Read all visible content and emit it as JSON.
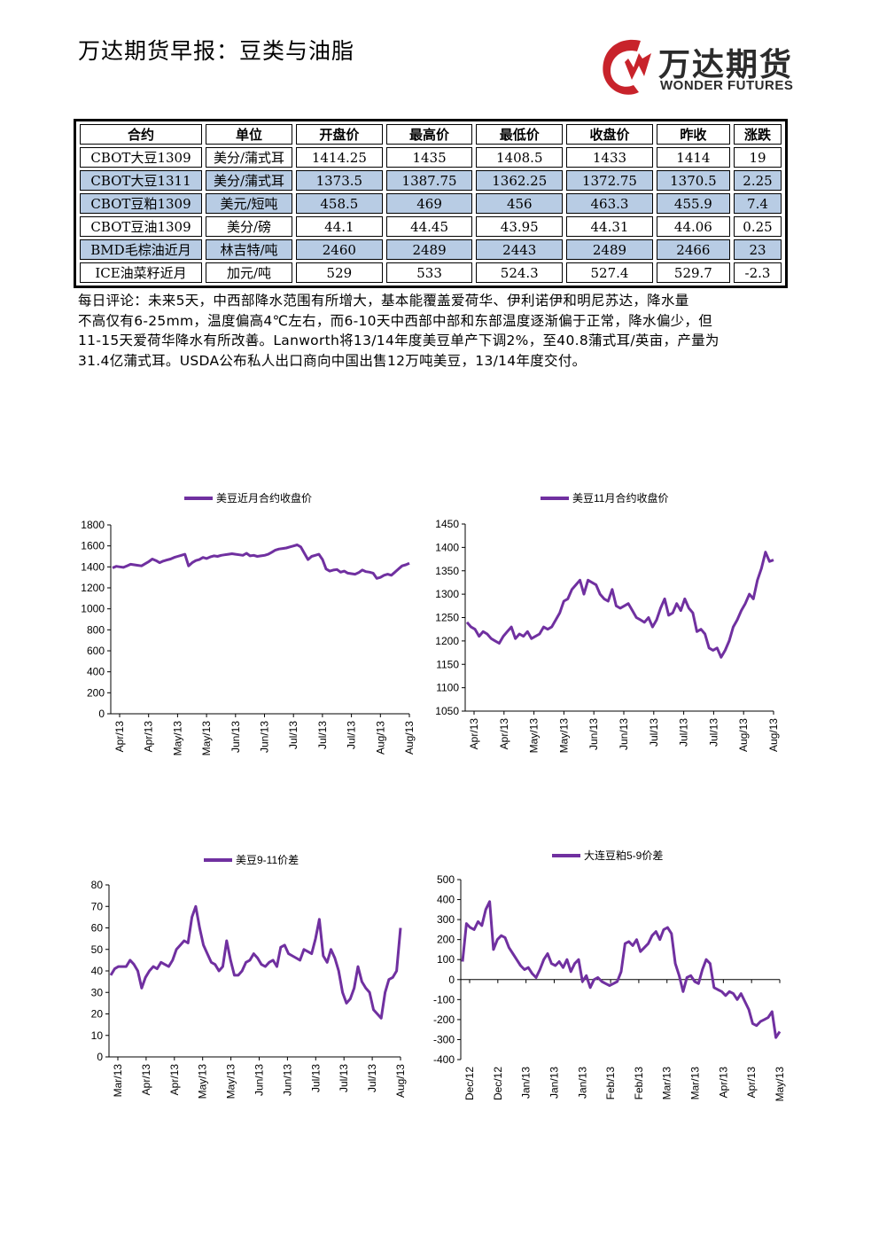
{
  "header": {
    "title": "万达期货早报：豆类与油脂"
  },
  "logo": {
    "name_cn": "万达期货",
    "name_en": "WONDER FUTURES",
    "brand_color": "#c8232b"
  },
  "quote_table": {
    "columns": [
      "合约",
      "单位",
      "开盘价",
      "最高价",
      "最低价",
      "收盘价",
      "昨收",
      "涨跌"
    ],
    "rows": [
      {
        "cells": [
          "CBOT大豆1309",
          "美分/蒲式耳",
          "1414.25",
          "1435",
          "1408.5",
          "1433",
          "1414",
          "19"
        ],
        "highlight": false
      },
      {
        "cells": [
          "CBOT大豆1311",
          "美分/蒲式耳",
          "1373.5",
          "1387.75",
          "1362.25",
          "1372.75",
          "1370.5",
          "2.25"
        ],
        "highlight": true
      },
      {
        "cells": [
          "CBOT豆粕1309",
          "美元/短吨",
          "458.5",
          "469",
          "456",
          "463.3",
          "455.9",
          "7.4"
        ],
        "highlight": true
      },
      {
        "cells": [
          "CBOT豆油1309",
          "美分/磅",
          "44.1",
          "44.45",
          "43.95",
          "44.31",
          "44.06",
          "0.25"
        ],
        "highlight": false
      },
      {
        "cells": [
          "BMD毛棕油近月",
          "林吉特/吨",
          "2460",
          "2489",
          "2443",
          "2489",
          "2466",
          "23"
        ],
        "highlight": true
      },
      {
        "cells": [
          "ICE油菜籽近月",
          "加元/吨",
          "529",
          "533",
          "524.3",
          "527.4",
          "529.7",
          "-2.3"
        ],
        "highlight": false
      }
    ],
    "highlight_color": "#b8cce4"
  },
  "comment": {
    "lines": [
      "每日评论：未来5天，中西部降水范围有所增大，基本能覆盖爱荷华、伊利诺伊和明尼苏达，降水量",
      "不高仅有6-25mm，温度偏高4℃左右，而6-10天中西部中部和东部温度逐渐偏于正常，降水偏少，但",
      "11-15天爱荷华降水有所改善。Lanworth将13/14年度美豆单产下调2%，至40.8蒲式耳/英亩，产量为",
      "31.4亿蒲式耳。USDA公布私人出口商向中国出售12万吨美豆，13/14年度交付。"
    ]
  },
  "chart_data": [
    {
      "type": "line",
      "legend": "美豆近月合约收盘价",
      "line_color": "#7030a0",
      "ylim": [
        0,
        1800
      ],
      "yticks": [
        0,
        200,
        400,
        600,
        800,
        1000,
        1200,
        1400,
        1600,
        1800
      ],
      "xticks": [
        "Apr/13",
        "Apr/13",
        "May/13",
        "May/13",
        "Jun/13",
        "Jun/13",
        "Jul/13",
        "Jul/13",
        "Jul/13",
        "Aug/13",
        "Aug/13"
      ],
      "values": [
        1390,
        1405,
        1400,
        1395,
        1410,
        1425,
        1420,
        1415,
        1410,
        1430,
        1450,
        1475,
        1460,
        1440,
        1455,
        1465,
        1475,
        1490,
        1500,
        1510,
        1520,
        1410,
        1440,
        1460,
        1470,
        1490,
        1480,
        1495,
        1505,
        1500,
        1510,
        1515,
        1520,
        1525,
        1520,
        1515,
        1510,
        1530,
        1505,
        1510,
        1500,
        1505,
        1510,
        1520,
        1540,
        1560,
        1570,
        1575,
        1580,
        1590,
        1600,
        1610,
        1590,
        1530,
        1470,
        1500,
        1510,
        1520,
        1470,
        1380,
        1360,
        1370,
        1375,
        1350,
        1360,
        1340,
        1335,
        1330,
        1345,
        1370,
        1355,
        1350,
        1340,
        1290,
        1300,
        1320,
        1330,
        1320,
        1350,
        1380,
        1410,
        1420,
        1435
      ]
    },
    {
      "type": "line",
      "legend": "美豆11月合约收盘价",
      "line_color": "#7030a0",
      "ylim": [
        1050,
        1450
      ],
      "yticks": [
        1050,
        1100,
        1150,
        1200,
        1250,
        1300,
        1350,
        1400,
        1450
      ],
      "xticks": [
        "Apr/13",
        "Apr/13",
        "May/13",
        "May/13",
        "Jun/13",
        "Jun/13",
        "Jul/13",
        "Jul/13",
        "Jul/13",
        "Aug/13",
        "Aug/13"
      ],
      "values": [
        1240,
        1230,
        1225,
        1210,
        1220,
        1215,
        1205,
        1200,
        1195,
        1210,
        1220,
        1230,
        1205,
        1215,
        1210,
        1220,
        1205,
        1210,
        1215,
        1230,
        1225,
        1230,
        1245,
        1260,
        1285,
        1290,
        1310,
        1320,
        1330,
        1300,
        1330,
        1325,
        1320,
        1300,
        1290,
        1285,
        1310,
        1275,
        1270,
        1275,
        1280,
        1265,
        1250,
        1245,
        1240,
        1250,
        1230,
        1245,
        1270,
        1290,
        1255,
        1260,
        1280,
        1265,
        1290,
        1270,
        1260,
        1220,
        1225,
        1215,
        1185,
        1180,
        1185,
        1165,
        1180,
        1200,
        1230,
        1245,
        1265,
        1280,
        1300,
        1290,
        1330,
        1355,
        1390,
        1370,
        1373
      ]
    },
    {
      "type": "line",
      "legend": "美豆9-11价差",
      "line_color": "#7030a0",
      "ylim": [
        0,
        80
      ],
      "yticks": [
        0,
        10,
        20,
        30,
        40,
        50,
        60,
        70,
        80
      ],
      "xticks": [
        "Mar/13",
        "Apr/13",
        "Apr/13",
        "May/13",
        "May/13",
        "Jun/13",
        "Jun/13",
        "Jul/13",
        "Jul/13",
        "Jul/13",
        "Aug/13"
      ],
      "values": [
        38,
        41,
        42,
        42,
        42,
        45,
        43,
        40,
        32,
        37,
        40,
        42,
        41,
        44,
        43,
        42,
        45,
        50,
        52,
        54,
        53,
        65,
        70,
        60,
        52,
        48,
        44,
        43,
        40,
        42,
        54,
        45,
        38,
        38,
        40,
        44,
        45,
        48,
        46,
        43,
        42,
        44,
        45,
        42,
        51,
        52,
        48,
        47,
        46,
        45,
        50,
        49,
        48,
        55,
        64,
        47,
        44,
        50,
        46,
        40,
        30,
        25,
        27,
        32,
        42,
        35,
        32,
        30,
        22,
        20,
        18,
        30,
        36,
        37,
        40,
        60
      ]
    },
    {
      "type": "line",
      "legend": "大连豆粕5-9价差",
      "line_color": "#7030a0",
      "ylim": [
        -400,
        500
      ],
      "yticks": [
        -400,
        -300,
        -200,
        -100,
        0,
        100,
        200,
        300,
        400,
        500
      ],
      "xticks": [
        "Dec/12",
        "Dec/12",
        "Jan/13",
        "Jan/13",
        "Jan/13",
        "Feb/13",
        "Feb/13",
        "Mar/13",
        "Mar/13",
        "Apr/13",
        "Apr/13",
        "May/13"
      ],
      "values": [
        90,
        280,
        260,
        250,
        290,
        270,
        350,
        390,
        150,
        200,
        220,
        210,
        160,
        130,
        100,
        70,
        50,
        60,
        30,
        10,
        50,
        100,
        130,
        80,
        70,
        90,
        60,
        100,
        40,
        80,
        100,
        -10,
        20,
        -40,
        0,
        10,
        -10,
        -20,
        -30,
        -20,
        -10,
        40,
        180,
        190,
        170,
        200,
        140,
        160,
        180,
        220,
        240,
        200,
        250,
        260,
        230,
        80,
        20,
        -60,
        10,
        20,
        -10,
        -20,
        50,
        100,
        80,
        -40,
        -50,
        -60,
        -80,
        -60,
        -70,
        -100,
        -70,
        -110,
        -150,
        -220,
        -230,
        -210,
        -200,
        -190,
        -160,
        -290,
        -260
      ]
    }
  ]
}
